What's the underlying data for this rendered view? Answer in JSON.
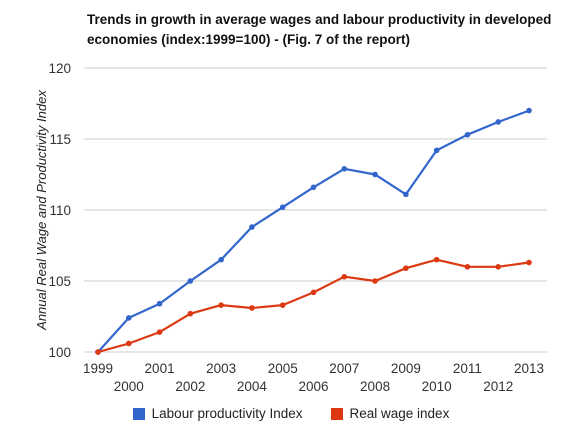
{
  "chart_data": {
    "type": "line",
    "title": "Trends in growth in average wages and labour productivity in developed economies (index:1999=100) - (Fig. 7 of the report)",
    "xlabel": "",
    "ylabel": "Annual Real Wage and Productivity Index",
    "x": [
      1999,
      2000,
      2001,
      2002,
      2003,
      2004,
      2005,
      2006,
      2007,
      2008,
      2009,
      2010,
      2011,
      2012,
      2013
    ],
    "ylim": [
      100,
      120
    ],
    "yticks": [
      100,
      105,
      110,
      115,
      120
    ],
    "grid": true,
    "legend_position": "bottom",
    "series": [
      {
        "name": "Labour productivity Index",
        "color": "#3366cc",
        "values": [
          100,
          102.4,
          103.4,
          105.0,
          106.5,
          108.8,
          110.2,
          111.6,
          112.9,
          112.5,
          111.1,
          114.2,
          115.3,
          116.2,
          117.0
        ]
      },
      {
        "name": "Real wage index",
        "color": "#dc3912",
        "values": [
          100,
          100.6,
          101.4,
          102.7,
          103.3,
          103.1,
          103.3,
          104.2,
          105.3,
          105.0,
          105.9,
          106.5,
          106.0,
          106.0,
          106.3
        ]
      }
    ]
  }
}
